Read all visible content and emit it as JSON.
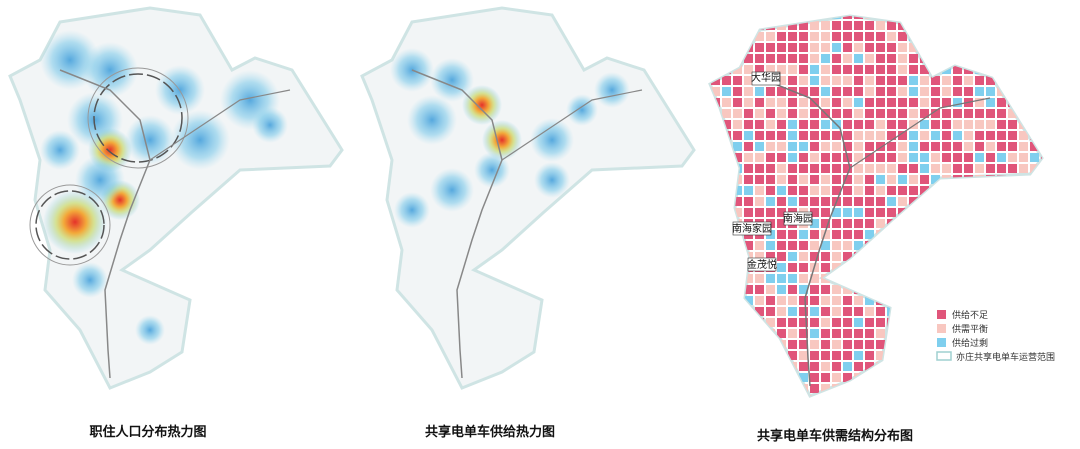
{
  "captions": [
    "职住人口分布热力图",
    "共享电单车供给热力图",
    "共享电单车供需结构分布图"
  ],
  "places": [
    "大华园",
    "南海园",
    "南海家园",
    "金茂悦"
  ],
  "legend": [
    "供给不足",
    "供需平衡",
    "供给过剩",
    "亦庄共享电单车运营范围"
  ]
}
